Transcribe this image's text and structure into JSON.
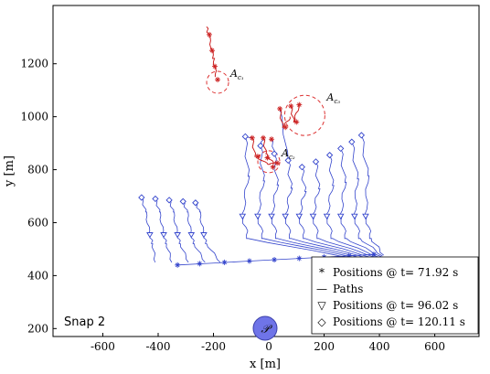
{
  "chart_data": {
    "type": "line",
    "xlabel": "x [m]",
    "ylabel": "y [m]",
    "xlim": [
      -780,
      760
    ],
    "ylim": [
      170,
      1420
    ],
    "x_ticks": [
      -600,
      -400,
      -200,
      0,
      200,
      400,
      600
    ],
    "y_ticks": [
      200,
      400,
      600,
      800,
      1000,
      1200
    ],
    "grid": false,
    "annotation": "Snap 2",
    "depot_label": "𝒫",
    "depot": {
      "x": 0,
      "y": 195
    },
    "areas": [
      {
        "name": "A",
        "sub": "c₁",
        "x": -185,
        "y": 1130
      },
      {
        "name": "A",
        "sub": "c₂",
        "x": 0,
        "y": 830
      },
      {
        "name": "A",
        "sub": "c₃",
        "x": 130,
        "y": 1005
      }
    ],
    "legend": {
      "position": "bottom-right",
      "entries": [
        {
          "marker": "*",
          "label": "Positions @ t= 71.92 s"
        },
        {
          "marker": "—",
          "label": "Paths"
        },
        {
          "marker": "▽",
          "label": "Positions @ t= 96.02 s"
        },
        {
          "marker": "◇",
          "label": "Positions @ t= 120.11 s"
        }
      ]
    },
    "series": [
      {
        "group": "left-block",
        "color": "#3344cc",
        "diamond_positions": [
          [
            -460,
            695
          ],
          [
            -410,
            690
          ],
          [
            -360,
            685
          ],
          [
            -310,
            680
          ],
          [
            -265,
            675
          ]
        ],
        "triangle_positions": [
          [
            -430,
            555
          ],
          [
            -380,
            555
          ],
          [
            -330,
            555
          ],
          [
            -280,
            555
          ],
          [
            -235,
            555
          ]
        ],
        "star_positions": [
          [
            -330,
            440
          ],
          [
            -250,
            445
          ],
          [
            -160,
            450
          ],
          [
            -70,
            455
          ],
          [
            20,
            460
          ],
          [
            110,
            465
          ],
          [
            200,
            470
          ],
          [
            290,
            475
          ],
          [
            380,
            480
          ]
        ]
      },
      {
        "group": "right-block",
        "color": "#3344cc",
        "diamond_positions": [
          [
            -85,
            925
          ],
          [
            -30,
            890
          ],
          [
            20,
            860
          ],
          [
            70,
            835
          ],
          [
            120,
            810
          ],
          [
            170,
            830
          ],
          [
            220,
            855
          ],
          [
            260,
            880
          ],
          [
            300,
            905
          ],
          [
            335,
            930
          ]
        ],
        "triangle_positions": [
          [
            -95,
            625
          ],
          [
            -40,
            625
          ],
          [
            10,
            625
          ],
          [
            60,
            625
          ],
          [
            110,
            625
          ],
          [
            160,
            625
          ],
          [
            210,
            625
          ],
          [
            260,
            625
          ],
          [
            310,
            625
          ],
          [
            350,
            625
          ]
        ]
      },
      {
        "group": "red-cluster-1",
        "color": "#cc2222",
        "star_positions": [
          [
            -215,
            1310
          ],
          [
            -205,
            1250
          ],
          [
            -195,
            1190
          ],
          [
            -185,
            1140
          ]
        ]
      },
      {
        "group": "red-cluster-2",
        "color": "#cc2222",
        "star_positions": [
          [
            -60,
            920
          ],
          [
            -20,
            920
          ],
          [
            10,
            915
          ],
          [
            -40,
            850
          ],
          [
            -5,
            845
          ],
          [
            30,
            825
          ],
          [
            15,
            810
          ]
        ]
      },
      {
        "group": "red-cluster-3",
        "color": "#cc2222",
        "star_positions": [
          [
            40,
            1030
          ],
          [
            80,
            1040
          ],
          [
            110,
            1045
          ],
          [
            60,
            960
          ],
          [
            100,
            980
          ]
        ]
      }
    ]
  }
}
